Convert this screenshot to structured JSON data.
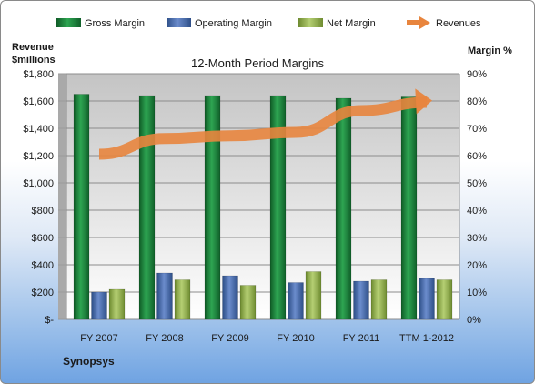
{
  "chart_data": {
    "type": "bar",
    "title": "12-Month Period Margins",
    "company": "Synopsys",
    "left_axis_label": [
      "Revenue",
      "$millions"
    ],
    "right_axis_label": "Margin %",
    "categories": [
      "FY 2007",
      "FY 2008",
      "FY 2009",
      "FY 2010",
      "FY 2011",
      "TTM 1-2012"
    ],
    "left_ticks": [
      "$-",
      "$200",
      "$400",
      "$600",
      "$800",
      "$1,000",
      "$1,200",
      "$1,400",
      "$1,600",
      "$1,800"
    ],
    "right_ticks": [
      "0%",
      "10%",
      "20%",
      "30%",
      "40%",
      "50%",
      "60%",
      "70%",
      "80%",
      "90%"
    ],
    "ylim_left": [
      0,
      1800
    ],
    "ylim_right": [
      0,
      90
    ],
    "legend_position": "top",
    "series": [
      {
        "name": "Gross Margin",
        "axis": "right",
        "kind": "bar",
        "color": "#1e8a3e",
        "values": [
          82.5,
          82,
          82,
          82,
          81,
          81.5
        ]
      },
      {
        "name": "Operating Margin",
        "axis": "right",
        "kind": "bar",
        "color": "#4a6fb0",
        "values": [
          10,
          17,
          16,
          13.5,
          14,
          15
        ]
      },
      {
        "name": "Net Margin",
        "axis": "right",
        "kind": "bar",
        "color": "#98b753",
        "values": [
          11,
          14.5,
          12.5,
          17.5,
          14.5,
          14.5
        ]
      },
      {
        "name": "Revenues",
        "axis": "left",
        "kind": "arrow-line",
        "color": "#e8853e",
        "values": [
          1210,
          1325,
          1345,
          1370,
          1530,
          1590
        ]
      }
    ]
  }
}
